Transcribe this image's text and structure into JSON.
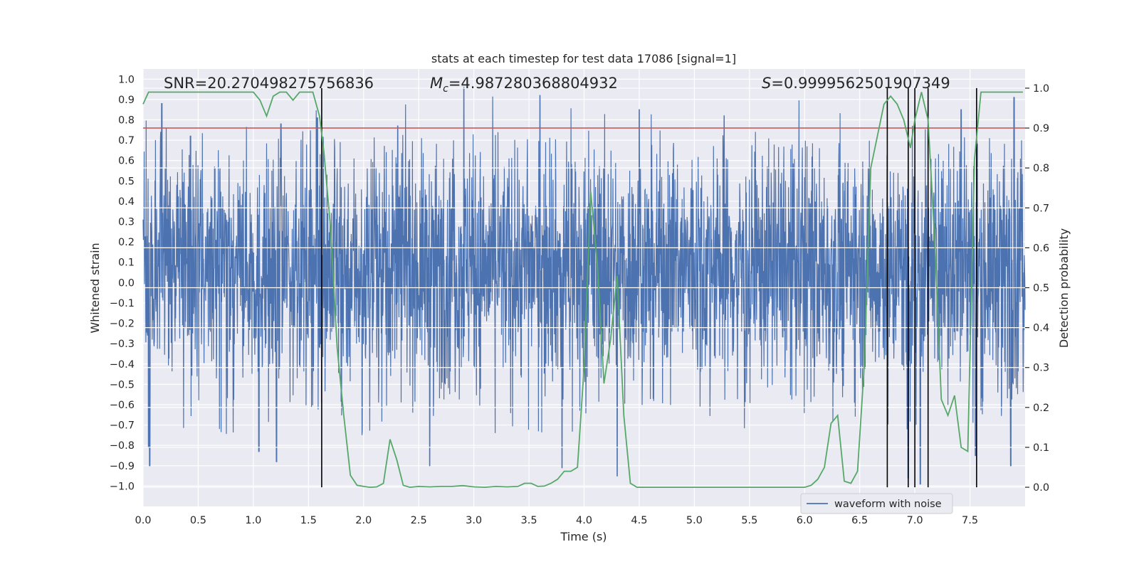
{
  "chart_data": {
    "type": "line",
    "title": "stats at each timestep for test data 17086 [signal=1]",
    "xlabel": "Time (s)",
    "ylabel": "Whitened strain",
    "y2label": "Detection probability",
    "xlim": [
      0,
      8
    ],
    "ylim": [
      -1.1,
      1.05
    ],
    "y2lim": [
      -0.048,
      1.048
    ],
    "x_ticks": [
      0.0,
      0.5,
      1.0,
      1.5,
      2.0,
      2.5,
      3.0,
      3.5,
      4.0,
      4.5,
      5.0,
      5.5,
      6.0,
      6.5,
      7.0,
      7.5
    ],
    "x_tick_labels": [
      "0.0",
      "0.5",
      "1.0",
      "1.5",
      "2.0",
      "2.5",
      "3.0",
      "3.5",
      "4.0",
      "4.5",
      "5.0",
      "5.5",
      "6.0",
      "6.5",
      "7.0",
      "7.5"
    ],
    "y_ticks": [
      1.0,
      0.9,
      0.8,
      0.7,
      0.6,
      0.5,
      0.4,
      0.3,
      0.2,
      0.1,
      0.0,
      -0.1,
      -0.2,
      -0.3,
      -0.4,
      -0.5,
      -0.6,
      -0.7,
      -0.8,
      -0.9,
      -1.0
    ],
    "y_tick_labels": [
      "1.0",
      "0.9",
      "0.8",
      "0.7",
      "0.6",
      "0.5",
      "0.4",
      "0.3",
      "0.2",
      "0.1",
      "0.0",
      "−0.1",
      "−0.2",
      "−0.3",
      "−0.4",
      "−0.5",
      "−0.6",
      "−0.7",
      "−0.8",
      "−0.9",
      "−1.0"
    ],
    "y2_ticks": [
      1.0,
      0.9,
      0.8,
      0.7,
      0.6,
      0.5,
      0.4,
      0.3,
      0.2,
      0.1,
      0.0
    ],
    "y2_tick_labels": [
      "1.0",
      "0.9",
      "0.8",
      "0.7",
      "0.6",
      "0.5",
      "0.4",
      "0.3",
      "0.2",
      "0.1",
      "0.0"
    ],
    "annotations": {
      "snr": "SNR=20.270498275756836",
      "mc_symbol": "M",
      "mc_sub": "c",
      "mc_value": "=4.987280368804932",
      "s_symbol": "S",
      "s_value": "=0.9999562501907349"
    },
    "threshold": {
      "y2": 0.9,
      "color": "#c44e52"
    },
    "vertical_lines": [
      1.62,
      6.75,
      6.94,
      7.0,
      7.12,
      7.56
    ],
    "waveform": {
      "name": "waveform with noise",
      "color": "#4c72b0",
      "typical_envelope": [
        -0.4,
        0.55
      ],
      "peaks_up": [
        [
          0.17,
          0.88
        ],
        [
          0.43,
          0.72
        ],
        [
          1.25,
          0.78
        ],
        [
          1.58,
          0.81
        ],
        [
          2.31,
          0.77
        ],
        [
          2.91,
          0.96
        ],
        [
          3.6,
          0.92
        ],
        [
          4.5,
          0.85
        ],
        [
          5.27,
          0.82
        ],
        [
          7.42,
          0.85
        ],
        [
          7.9,
          0.91
        ]
      ],
      "peaks_down": [
        [
          0.05,
          -0.81
        ],
        [
          0.06,
          -0.9
        ],
        [
          1.05,
          -0.83
        ],
        [
          1.21,
          -0.88
        ],
        [
          2.6,
          -0.9
        ],
        [
          3.8,
          -0.91
        ],
        [
          4.3,
          -0.95
        ],
        [
          6.94,
          -0.96
        ],
        [
          7.05,
          -0.99
        ],
        [
          7.55,
          -0.85
        ],
        [
          7.87,
          -0.9
        ]
      ],
      "color_series": "#4c72b0"
    },
    "detection_probability": {
      "color": "#55a868",
      "x": [
        0.0,
        0.05,
        0.12,
        0.2,
        0.3,
        0.4,
        0.5,
        0.6,
        0.7,
        0.8,
        0.9,
        1.0,
        1.06,
        1.12,
        1.18,
        1.24,
        1.3,
        1.36,
        1.42,
        1.48,
        1.54,
        1.6,
        1.64,
        1.7,
        1.76,
        1.82,
        1.88,
        1.94,
        2.0,
        2.06,
        2.12,
        2.18,
        2.24,
        2.3,
        2.36,
        2.42,
        2.5,
        2.6,
        2.7,
        2.8,
        2.9,
        3.0,
        3.1,
        3.2,
        3.3,
        3.4,
        3.46,
        3.52,
        3.58,
        3.64,
        3.7,
        3.76,
        3.82,
        3.88,
        3.94,
        4.0,
        4.06,
        4.12,
        4.18,
        4.24,
        4.3,
        4.36,
        4.42,
        4.48,
        4.54,
        4.6,
        4.7,
        4.8,
        4.9,
        5.0,
        5.2,
        5.4,
        5.6,
        5.8,
        6.0,
        6.06,
        6.12,
        6.18,
        6.24,
        6.3,
        6.36,
        6.42,
        6.48,
        6.54,
        6.6,
        6.66,
        6.72,
        6.78,
        6.84,
        6.9,
        6.96,
        7.0,
        7.06,
        7.12,
        7.18,
        7.24,
        7.3,
        7.36,
        7.42,
        7.48,
        7.54,
        7.6,
        7.66,
        7.72,
        7.8,
        7.9,
        7.98
      ],
      "y": [
        0.96,
        0.99,
        0.99,
        0.99,
        0.99,
        0.99,
        0.99,
        0.99,
        0.99,
        0.99,
        0.99,
        0.99,
        0.97,
        0.93,
        0.98,
        0.99,
        0.99,
        0.97,
        0.99,
        0.99,
        0.99,
        0.93,
        0.84,
        0.65,
        0.35,
        0.18,
        0.03,
        0.005,
        0.002,
        0.0,
        0.001,
        0.01,
        0.12,
        0.07,
        0.005,
        0.0,
        0.002,
        0.001,
        0.002,
        0.002,
        0.004,
        0.001,
        0.0,
        0.002,
        0.001,
        0.002,
        0.01,
        0.01,
        0.002,
        0.003,
        0.01,
        0.02,
        0.04,
        0.04,
        0.05,
        0.3,
        0.74,
        0.56,
        0.26,
        0.37,
        0.53,
        0.18,
        0.01,
        0.0,
        0.0,
        0.0,
        0.0,
        0.0,
        0.0,
        0.0,
        0.0,
        0.0,
        0.0,
        0.0,
        0.0,
        0.005,
        0.02,
        0.05,
        0.16,
        0.18,
        0.015,
        0.01,
        0.04,
        0.3,
        0.8,
        0.88,
        0.96,
        0.98,
        0.96,
        0.92,
        0.85,
        0.92,
        0.99,
        0.92,
        0.62,
        0.22,
        0.18,
        0.23,
        0.1,
        0.09,
        0.82,
        0.99,
        0.99,
        0.99,
        0.99,
        0.99,
        0.99
      ]
    },
    "legend": {
      "placement": "bottom-right",
      "entries": [
        "waveform with noise"
      ]
    },
    "grid": true,
    "background": "#eaeaf2"
  }
}
